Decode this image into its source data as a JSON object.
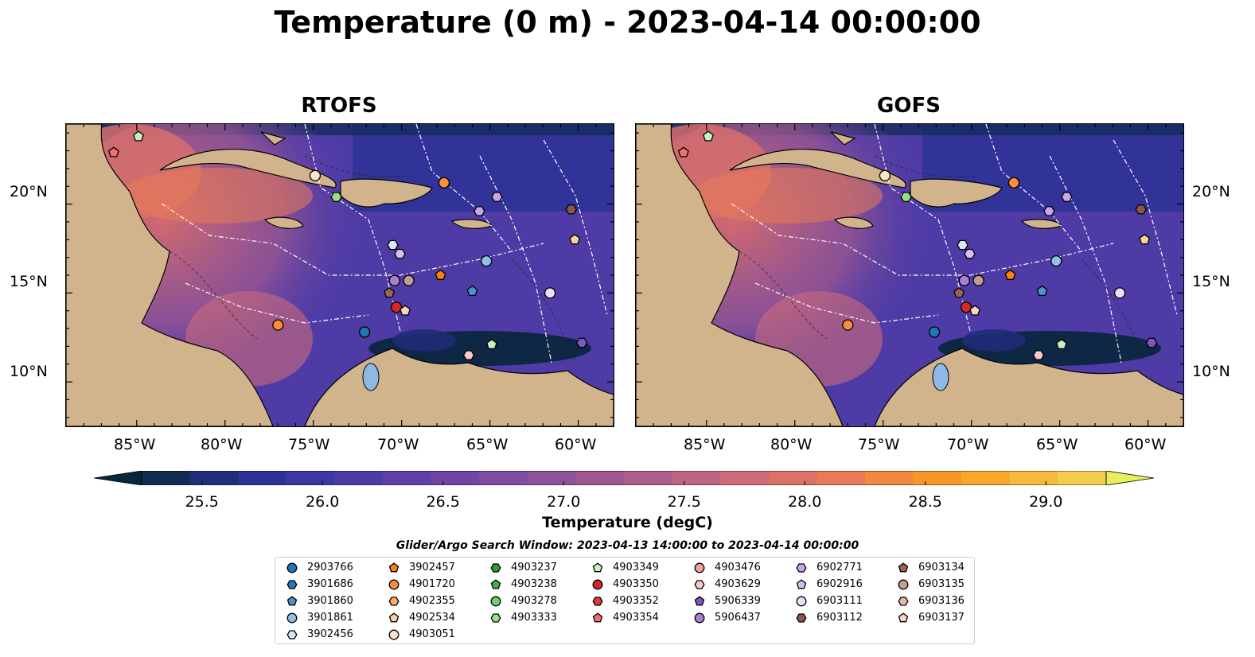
{
  "title": "Temperature (0 m) - 2023-04-14 00:00:00",
  "panels": [
    {
      "name": "RTOFS"
    },
    {
      "name": "GOFS"
    }
  ],
  "longitude_labels": [
    "85°W",
    "80°W",
    "75°W",
    "70°W",
    "65°W",
    "60°W"
  ],
  "latitude_labels": [
    "20°N",
    "15°N",
    "10°N"
  ],
  "colorbar": {
    "label": "Temperature (degC)",
    "min": 25.25,
    "max": 29.25,
    "step": 0.25,
    "ticks": [
      "25.5",
      "26.0",
      "26.5",
      "27.0",
      "27.5",
      "28.0",
      "28.5",
      "29.0"
    ],
    "colors": [
      "#08263a",
      "#112b52",
      "#1f2e78",
      "#2d3296",
      "#3d37a3",
      "#4e3ba6",
      "#5f40a6",
      "#6f46a3",
      "#7f4c9f",
      "#8e529a",
      "#9e5894",
      "#ae5e8d",
      "#bd6484",
      "#cc6a79",
      "#db7169",
      "#e87b56",
      "#f2873f",
      "#f79629",
      "#f9a72a",
      "#f7b93a",
      "#f3cd4e",
      "#e7f05c"
    ]
  },
  "legend": {
    "title": "Glider/Argo Search Window: 2023-04-13 14:00:00 to 2023-04-14 00:00:00",
    "columns": [
      [
        {
          "id": "2903766",
          "marker": "circle",
          "color": "#1f77b4"
        },
        {
          "id": "3901686",
          "marker": "hexagon",
          "color": "#2a78c0"
        },
        {
          "id": "3901860",
          "marker": "pentagon",
          "color": "#4a94d2"
        },
        {
          "id": "3901861",
          "marker": "circle",
          "color": "#8ec1e8"
        },
        {
          "id": "3902456",
          "marker": "hexagon",
          "color": "#d6e8f7"
        }
      ],
      [
        {
          "id": "3902457",
          "marker": "pentagon",
          "color": "#ff7f0e"
        },
        {
          "id": "4901720",
          "marker": "circle",
          "color": "#fd8c3a"
        },
        {
          "id": "4902355",
          "marker": "hexagon",
          "color": "#fdac6b"
        },
        {
          "id": "4902534",
          "marker": "pentagon",
          "color": "#fdd0a2"
        },
        {
          "id": "4903051",
          "marker": "circle",
          "color": "#fde3c8"
        }
      ],
      [
        {
          "id": "4903237",
          "marker": "hexagon",
          "color": "#2ca02c"
        },
        {
          "id": "4903238",
          "marker": "pentagon",
          "color": "#3cb14a"
        },
        {
          "id": "4903278",
          "marker": "circle",
          "color": "#6fcf6f"
        },
        {
          "id": "4903333",
          "marker": "hexagon",
          "color": "#98df8a"
        }
      ],
      [
        {
          "id": "4903349",
          "marker": "pentagon",
          "color": "#c7f1c0"
        },
        {
          "id": "4903350",
          "marker": "circle",
          "color": "#d62728"
        },
        {
          "id": "4903352",
          "marker": "hexagon",
          "color": "#e0393a"
        },
        {
          "id": "4903354",
          "marker": "pentagon",
          "color": "#f07070"
        }
      ],
      [
        {
          "id": "4903476",
          "marker": "circle",
          "color": "#f4a0a0"
        },
        {
          "id": "4903629",
          "marker": "hexagon",
          "color": "#fbc8c8"
        },
        {
          "id": "5906339",
          "marker": "pentagon",
          "color": "#7e57c2"
        },
        {
          "id": "5906437",
          "marker": "circle",
          "color": "#a97fd6"
        }
      ],
      [
        {
          "id": "6902771",
          "marker": "hexagon",
          "color": "#c9a6ec"
        },
        {
          "id": "6902916",
          "marker": "pentagon",
          "color": "#d8bdf5"
        },
        {
          "id": "6903111",
          "marker": "circle",
          "color": "#eedcfb"
        },
        {
          "id": "6903112",
          "marker": "hexagon",
          "color": "#8c564b"
        }
      ],
      [
        {
          "id": "6903134",
          "marker": "pentagon",
          "color": "#9a6358"
        },
        {
          "id": "6903135",
          "marker": "circle",
          "color": "#c49c94"
        },
        {
          "id": "6903136",
          "marker": "hexagon",
          "color": "#e8b8a8"
        },
        {
          "id": "6903137",
          "marker": "pentagon",
          "color": "#fbd3c5"
        }
      ]
    ]
  },
  "floats": [
    {
      "marker": "pentagon",
      "color": "#c7f1c0",
      "lon": -84.9,
      "lat": 23.8
    },
    {
      "marker": "pentagon",
      "color": "#f07070",
      "lon": -86.3,
      "lat": 22.9
    },
    {
      "marker": "circle",
      "color": "#fde3c8",
      "lon": -74.9,
      "lat": 21.6
    },
    {
      "marker": "hexagon",
      "color": "#98df8a",
      "lon": -73.7,
      "lat": 20.4
    },
    {
      "marker": "circle",
      "color": "#fd8c3a",
      "lon": -67.6,
      "lat": 21.2
    },
    {
      "marker": "hexagon",
      "color": "#c9a6ec",
      "lon": -65.6,
      "lat": 19.6
    },
    {
      "marker": "hexagon",
      "color": "#c9a6ec",
      "lon": -64.6,
      "lat": 20.4
    },
    {
      "marker": "hexagon",
      "color": "#8c564b",
      "lon": -60.4,
      "lat": 19.7
    },
    {
      "marker": "pentagon",
      "color": "#fdd0a2",
      "lon": -60.2,
      "lat": 18.0
    },
    {
      "marker": "hexagon",
      "color": "#d6e8f7",
      "lon": -70.5,
      "lat": 17.7
    },
    {
      "marker": "hexagon",
      "color": "#d8bdf5",
      "lon": -70.1,
      "lat": 17.2
    },
    {
      "marker": "pentagon",
      "color": "#ff7f0e",
      "lon": -67.8,
      "lat": 16.0
    },
    {
      "marker": "circle",
      "color": "#8ec1e8",
      "lon": -65.2,
      "lat": 16.8
    },
    {
      "marker": "circle",
      "color": "#a97fd6",
      "lon": -70.4,
      "lat": 15.7
    },
    {
      "marker": "circle",
      "color": "#c49c94",
      "lon": -69.6,
      "lat": 15.7
    },
    {
      "marker": "pentagon",
      "color": "#4a94d2",
      "lon": -66.0,
      "lat": 15.1
    },
    {
      "marker": "circle",
      "color": "#eedcfb",
      "lon": -61.6,
      "lat": 15.0
    },
    {
      "marker": "pentagon",
      "color": "#9a6358",
      "lon": -70.7,
      "lat": 15.0
    },
    {
      "marker": "circle",
      "color": "#d62728",
      "lon": -70.3,
      "lat": 14.2
    },
    {
      "marker": "pentagon",
      "color": "#fbd3c5",
      "lon": -69.8,
      "lat": 14.0
    },
    {
      "marker": "circle",
      "color": "#fd8c3a",
      "lon": -77.0,
      "lat": 13.2
    },
    {
      "marker": "circle",
      "color": "#1f77b4",
      "lon": -72.1,
      "lat": 12.8
    },
    {
      "marker": "pentagon",
      "color": "#c7f1c0",
      "lon": -64.9,
      "lat": 12.1
    },
    {
      "marker": "hexagon",
      "color": "#7e57c2",
      "lon": -59.8,
      "lat": 12.2
    },
    {
      "marker": "hexagon",
      "color": "#fbc8c8",
      "lon": -66.2,
      "lat": 11.5
    }
  ]
}
